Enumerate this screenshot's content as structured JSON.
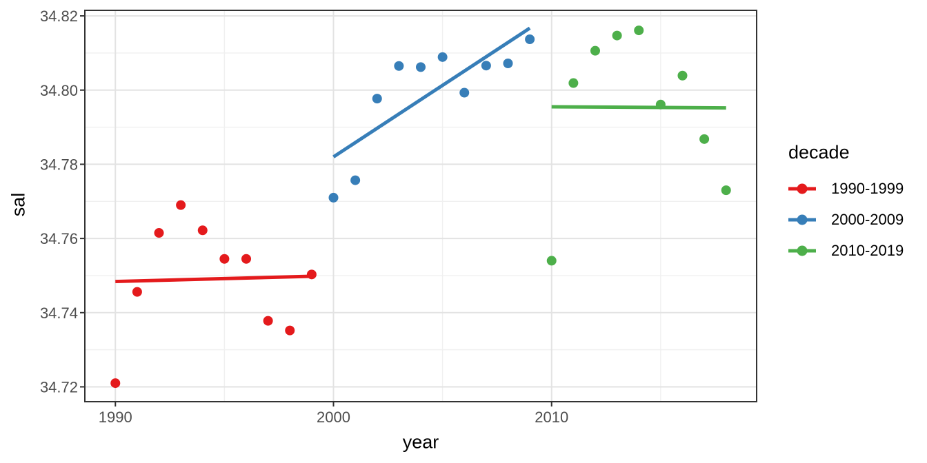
{
  "figure": {
    "x_axis_title": "year",
    "y_axis_title": "sal"
  },
  "colors": {
    "red": "#E41A1C",
    "blue": "#377EB8",
    "green": "#4DAF4A",
    "grid_major": "#e3e3e3",
    "grid_minor": "#f0f0f0",
    "panel_border": "#333333",
    "tick_label": "#4d4d4d"
  },
  "chart_data": {
    "type": "scatter",
    "title": "",
    "xlabel": "year",
    "ylabel": "sal",
    "grid": true,
    "legend_title": "decade",
    "legend_position": "right",
    "xlim": [
      1988.6,
      2019.4
    ],
    "ylim": [
      34.716,
      34.8215
    ],
    "x_ticks": [
      {
        "value": 1990,
        "label": "1990"
      },
      {
        "value": 2000,
        "label": "2000"
      },
      {
        "value": 2010,
        "label": "2010"
      }
    ],
    "x_minor_ticks": [
      1995,
      2005,
      2015
    ],
    "y_ticks": [
      {
        "value": 34.72,
        "label": "34.72"
      },
      {
        "value": 34.74,
        "label": "34.74"
      },
      {
        "value": 34.76,
        "label": "34.76"
      },
      {
        "value": 34.78,
        "label": "34.78"
      },
      {
        "value": 34.8,
        "label": "34.80"
      },
      {
        "value": 34.82,
        "label": "34.82"
      }
    ],
    "y_minor_ticks": [
      34.73,
      34.75,
      34.77,
      34.79,
      34.81
    ],
    "series": [
      {
        "name": "1990-1999",
        "color": "#E41A1C",
        "x": [
          1990,
          1991,
          1992,
          1993,
          1994,
          1995,
          1996,
          1997,
          1998,
          1999
        ],
        "y": [
          34.721,
          34.7456,
          34.7615,
          34.769,
          34.7622,
          34.7545,
          34.7545,
          34.7378,
          34.7352,
          34.7503
        ],
        "trend": {
          "x1": 1990,
          "y1": 34.7484,
          "x2": 1999,
          "y2": 34.7498
        }
      },
      {
        "name": "2000-2009",
        "color": "#377EB8",
        "x": [
          2000,
          2001,
          2002,
          2003,
          2004,
          2005,
          2006,
          2007,
          2008,
          2009
        ],
        "y": [
          34.771,
          34.7757,
          34.7977,
          34.8065,
          34.8062,
          34.8089,
          34.7993,
          34.8066,
          34.8072,
          34.8137
        ],
        "trend": {
          "x1": 2000,
          "y1": 34.782,
          "x2": 2009,
          "y2": 34.8167
        }
      },
      {
        "name": "2010-2019",
        "color": "#4DAF4A",
        "x": [
          2010,
          2011,
          2012,
          2013,
          2014,
          2015,
          2016,
          2017,
          2018
        ],
        "y": [
          34.754,
          34.8019,
          34.8106,
          34.8147,
          34.8161,
          34.7961,
          34.8039,
          34.7868,
          34.773
        ],
        "trend": {
          "x1": 2010,
          "y1": 34.7955,
          "x2": 2018,
          "y2": 34.7952
        }
      }
    ]
  }
}
